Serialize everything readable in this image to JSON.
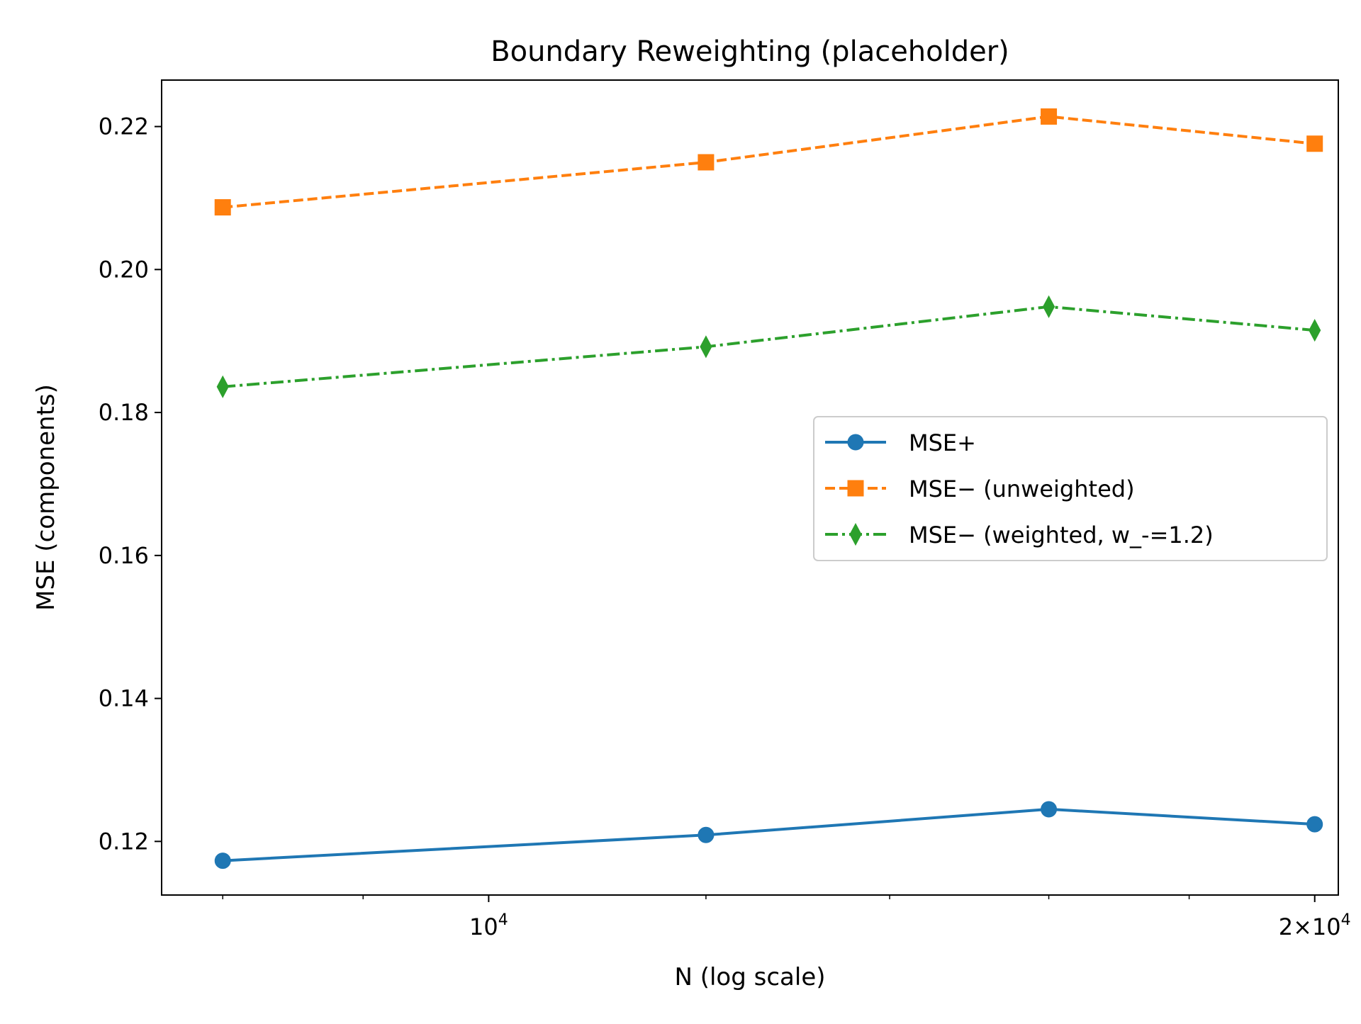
{
  "chart_data": {
    "type": "line",
    "title": "Boundary Reweighting (placeholder)",
    "xlabel": "N (log scale)",
    "ylabel": "MSE (components)",
    "x_scale": "log",
    "x": [
      8000,
      12000,
      16000,
      20000
    ],
    "xlim": [
      7600,
      20400
    ],
    "ylim": [
      0.1125,
      0.2265
    ],
    "x_major_ticks": [
      {
        "value": 10000,
        "base": "10",
        "exp": "4",
        "label": "10^4"
      },
      {
        "value": 20000,
        "base": "2×10",
        "exp": "4",
        "label": "2×10^4"
      }
    ],
    "x_minor_ticks": [
      8000,
      9000,
      12000,
      14000,
      16000,
      18000
    ],
    "y_ticks": [
      {
        "value": 0.12,
        "label": "0.12"
      },
      {
        "value": 0.14,
        "label": "0.14"
      },
      {
        "value": 0.16,
        "label": "0.16"
      },
      {
        "value": 0.18,
        "label": "0.18"
      },
      {
        "value": 0.2,
        "label": "0.20"
      },
      {
        "value": 0.22,
        "label": "0.22"
      }
    ],
    "grid": false,
    "legend_position": "center-right",
    "series": [
      {
        "name": "MSE+",
        "values": [
          0.1173,
          0.1209,
          0.1245,
          0.1224
        ],
        "color": "#1f77b4",
        "line_style": "solid",
        "marker": "circle"
      },
      {
        "name": "MSE− (unweighted)",
        "values": [
          0.2087,
          0.215,
          0.2214,
          0.2176
        ],
        "color": "#ff7f0e",
        "line_style": "dashed",
        "marker": "square"
      },
      {
        "name": "MSE− (weighted, w_-=1.2)",
        "values": [
          0.1836,
          0.1892,
          0.1948,
          0.1915
        ],
        "color": "#2ca02c",
        "line_style": "dashdot",
        "marker": "thin-diamond"
      }
    ]
  }
}
